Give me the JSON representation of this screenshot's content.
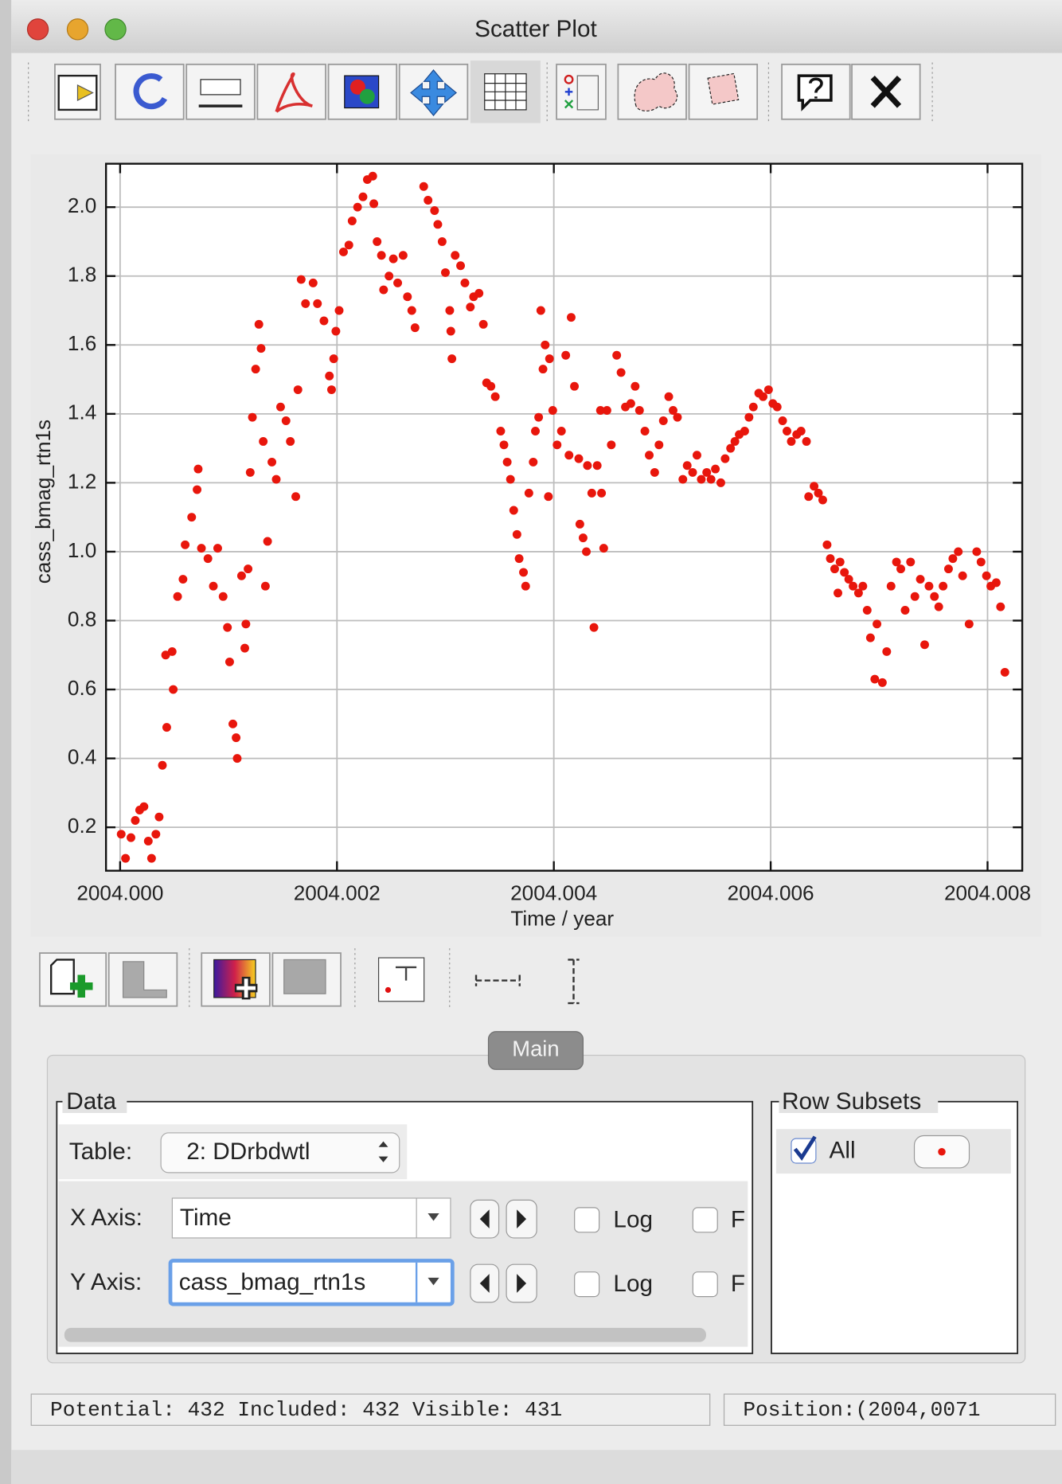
{
  "window": {
    "title": "Scatter Plot"
  },
  "chart_data": {
    "type": "scatter",
    "xlabel": "Time / year",
    "ylabel": "cass_bmag_rtn1s",
    "xlim": [
      2003.99987,
      2004.00832
    ],
    "ylim": [
      0.074,
      2.126
    ],
    "xticks": [
      {
        "value": 2004.0,
        "label": "2004.000"
      },
      2004.002,
      2004.004,
      2004.006,
      2004.008
    ],
    "yticks": [
      0.2,
      0.4,
      0.6,
      0.8,
      {
        "value": 1.0,
        "label": "1.0"
      },
      1.2,
      1.4,
      1.6,
      1.8,
      {
        "value": 2.0,
        "label": "2.0"
      }
    ],
    "grid": true,
    "x": [
      2004.00001,
      2004.00005,
      2004.0001,
      2004.00014,
      2004.00018,
      2004.00022,
      2004.00026,
      2004.00029,
      2004.00033,
      2004.00036,
      2004.00039,
      2004.00043,
      2004.00042,
      2004.00048,
      2004.00049,
      2004.00053,
      2004.00058,
      2004.0006,
      2004.00066,
      2004.00071,
      2004.00072,
      2004.00075,
      2004.00081,
      2004.00086,
      2004.0009,
      2004.00095,
      2004.00099,
      2004.00101,
      2004.00104,
      2004.00108,
      2004.00107,
      2004.00112,
      2004.00115,
      2004.00116,
      2004.00118,
      2004.0012,
      2004.00122,
      2004.00125,
      2004.00128,
      2004.0013,
      2004.00132,
      2004.00134,
      2004.00136,
      2004.0014,
      2004.00144,
      2004.00148,
      2004.00153,
      2004.00157,
      2004.00162,
      2004.00164,
      2004.00167,
      2004.00171,
      2004.00178,
      2004.00182,
      2004.00188,
      2004.00193,
      2004.00195,
      2004.00197,
      2004.00199,
      2004.00202,
      2004.00206,
      2004.00211,
      2004.00214,
      2004.00219,
      2004.00224,
      2004.00228,
      2004.00233,
      2004.00234,
      2004.00237,
      2004.00241,
      2004.00243,
      2004.00248,
      2004.00252,
      2004.00256,
      2004.00261,
      2004.00265,
      2004.00269,
      2004.00272,
      2004.0028,
      2004.00284,
      2004.0029,
      2004.00293,
      2004.00297,
      2004.003,
      2004.00304,
      2004.00305,
      2004.00306,
      2004.00309,
      2004.00314,
      2004.00318,
      2004.00323,
      2004.00326,
      2004.00331,
      2004.00335,
      2004.00338,
      2004.00342,
      2004.00346,
      2004.00351,
      2004.00354,
      2004.00357,
      2004.0036,
      2004.00363,
      2004.00366,
      2004.00368,
      2004.00372,
      2004.00374,
      2004.00377,
      2004.00381,
      2004.00383,
      2004.00386,
      2004.00388,
      2004.0039,
      2004.00392,
      2004.00395,
      2004.00396,
      2004.00399,
      2004.00403,
      2004.00407,
      2004.00411,
      2004.00414,
      2004.00416,
      2004.00419,
      2004.00423,
      2004.00424,
      2004.00427,
      2004.0043,
      2004.00431,
      2004.00435,
      2004.00437,
      2004.0044,
      2004.00443,
      2004.00444,
      2004.00446,
      2004.00449,
      2004.00453,
      2004.00458,
      2004.00462,
      2004.00466,
      2004.00471,
      2004.00475,
      2004.00479,
      2004.00484,
      2004.00488,
      2004.00493,
      2004.00497,
      2004.00501,
      2004.00506,
      2004.0051,
      2004.00514,
      2004.00519,
      2004.00523,
      2004.00528,
      2004.00532,
      2004.00536,
      2004.00541,
      2004.00545,
      2004.00549,
      2004.00554,
      2004.00558,
      2004.00563,
      2004.00567,
      2004.00571,
      2004.00576,
      2004.0058,
      2004.00584,
      2004.00589,
      2004.00593,
      2004.00598,
      2004.00602,
      2004.00606,
      2004.00611,
      2004.00615,
      2004.00619,
      2004.00624,
      2004.00628,
      2004.00633,
      2004.00635,
      2004.0064,
      2004.00644,
      2004.00648,
      2004.00652,
      2004.00655,
      2004.00659,
      2004.00662,
      2004.00664,
      2004.00668,
      2004.00672,
      2004.00676,
      2004.00681,
      2004.00685,
      2004.00689,
      2004.00692,
      2004.00696,
      2004.00698,
      2004.00703,
      2004.00707,
      2004.00711,
      2004.00716,
      2004.0072,
      2004.00724,
      2004.00729,
      2004.00733,
      2004.00738,
      2004.00742,
      2004.00746,
      2004.00751,
      2004.00755,
      2004.00759,
      2004.00764,
      2004.00768,
      2004.00773,
      2004.00777,
      2004.00783,
      2004.0079,
      2004.00794,
      2004.00799,
      2004.00803,
      2004.00808,
      2004.00812,
      2004.00816
    ],
    "series": [
      {
        "name": "All",
        "color": "#e8160c",
        "values": [
          0.18,
          0.11,
          0.17,
          0.22,
          0.25,
          0.26,
          0.16,
          0.11,
          0.18,
          0.23,
          0.38,
          0.49,
          0.7,
          0.71,
          0.6,
          0.87,
          0.92,
          1.02,
          1.1,
          1.18,
          1.24,
          1.01,
          0.98,
          0.9,
          1.01,
          0.87,
          0.78,
          0.68,
          0.5,
          0.4,
          0.46,
          0.93,
          0.72,
          0.79,
          0.95,
          1.23,
          1.39,
          1.53,
          1.66,
          1.59,
          1.32,
          0.9,
          1.03,
          1.26,
          1.21,
          1.42,
          1.38,
          1.32,
          1.16,
          1.47,
          1.79,
          1.72,
          1.78,
          1.72,
          1.67,
          1.51,
          1.47,
          1.56,
          1.64,
          1.7,
          1.87,
          1.89,
          1.96,
          2.0,
          2.03,
          2.08,
          2.09,
          2.01,
          1.9,
          1.86,
          1.76,
          1.8,
          1.85,
          1.78,
          1.86,
          1.74,
          1.7,
          1.65,
          2.06,
          2.02,
          1.99,
          1.95,
          1.9,
          1.81,
          1.7,
          1.64,
          1.56,
          1.86,
          1.83,
          1.78,
          1.71,
          1.74,
          1.75,
          1.66,
          1.49,
          1.48,
          1.45,
          1.35,
          1.31,
          1.26,
          1.21,
          1.12,
          1.05,
          0.98,
          0.94,
          0.9,
          1.17,
          1.26,
          1.35,
          1.39,
          1.7,
          1.53,
          1.6,
          1.16,
          1.56,
          1.41,
          1.31,
          1.35,
          1.57,
          1.28,
          1.68,
          1.48,
          1.27,
          1.08,
          1.04,
          1.0,
          1.25,
          1.17,
          0.78,
          1.25,
          1.41,
          1.17,
          1.01,
          1.41,
          1.31,
          1.57,
          1.52,
          1.42,
          1.43,
          1.48,
          1.41,
          1.35,
          1.28,
          1.23,
          1.31,
          1.38,
          1.45,
          1.41,
          1.39,
          1.21,
          1.25,
          1.23,
          1.28,
          1.21,
          1.23,
          1.21,
          1.24,
          1.2,
          1.27,
          1.3,
          1.32,
          1.34,
          1.35,
          1.39,
          1.42,
          1.46,
          1.45,
          1.47,
          1.43,
          1.42,
          1.38,
          1.35,
          1.32,
          1.34,
          1.35,
          1.32,
          1.16,
          1.19,
          1.17,
          1.15,
          1.02,
          0.98,
          0.95,
          0.88,
          0.97,
          0.94,
          0.92,
          0.9,
          0.88,
          0.9,
          0.83,
          0.75,
          0.63,
          0.79,
          0.62,
          0.71,
          0.9,
          0.97,
          0.95,
          0.83,
          0.97,
          0.87,
          0.92,
          0.73,
          0.9,
          0.87,
          0.84,
          0.9,
          0.95,
          0.98,
          1.0,
          0.93,
          0.79,
          1.0,
          0.97,
          0.93,
          0.9,
          0.91,
          0.84,
          0.65
        ]
      }
    ]
  },
  "tab": "Main",
  "data_panel": {
    "title": "Data",
    "table_label": "Table:",
    "table_value": "2: DDrbdwtl",
    "rows": [
      {
        "label": "X Axis:",
        "value": "Time",
        "log": "Log",
        "flip": "F"
      },
      {
        "label": "Y Axis:",
        "value": "cass_bmag_rtn1s",
        "log": "Log",
        "flip": "F"
      }
    ]
  },
  "subsets_panel": {
    "title": "Row Subsets"
  },
  "status": {
    "counts": "Potential: 432 Included: 432 Visible: 431",
    "position": "Position:(2004,0071"
  }
}
